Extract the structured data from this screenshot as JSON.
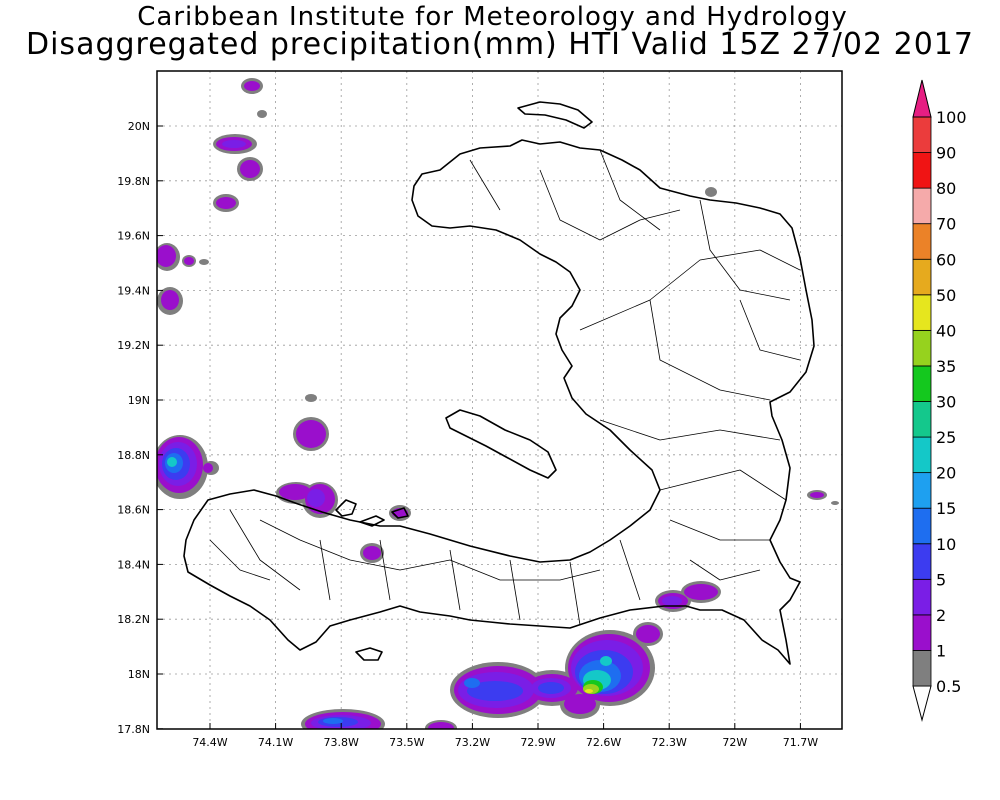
{
  "title": {
    "line1": "Caribbean Institute for Meteorology and Hydrology",
    "line2": "Disaggregated precipitation(mm) HTI Valid 15Z 27/02 2017"
  },
  "axes": {
    "lon_ticks": [
      "74.4W",
      "74.1W",
      "73.8W",
      "73.5W",
      "73.2W",
      "72.9W",
      "72.6W",
      "72.3W",
      "72W",
      "71.7W"
    ],
    "lat_ticks": [
      "20N",
      "19.8N",
      "19.6N",
      "19.4N",
      "19.2N",
      "19N",
      "18.8N",
      "18.6N",
      "18.4N",
      "18.2N",
      "18N",
      "17.8N"
    ]
  },
  "colorbar": {
    "levels": [
      "0.5",
      "1",
      "2",
      "5",
      "10",
      "15",
      "20",
      "25",
      "30",
      "35",
      "40",
      "50",
      "60",
      "70",
      "80",
      "90",
      "100"
    ],
    "colors": [
      "#ffffff",
      "#7f7f7f",
      "#9a0fcc",
      "#7a1ee6",
      "#3c3cf0",
      "#1e6ef0",
      "#1ea0f0",
      "#14c8c8",
      "#14c88c",
      "#14c81e",
      "#96d21e",
      "#e6e61e",
      "#e6aa1e",
      "#eb8228",
      "#f5aaaa",
      "#f01414",
      "#eb3c3c",
      "#e61e82"
    ]
  },
  "colors": {
    "gray": "#7f7f7f",
    "purple": "#9a0fcc",
    "violet": "#7a1ee6",
    "blue": "#3c3cf0",
    "lightblue": "#1e6ef0",
    "cyan": "#14c8c8",
    "green": "#14c81e",
    "yellowgreen": "#96d21e",
    "yellow": "#e6e61e"
  }
}
